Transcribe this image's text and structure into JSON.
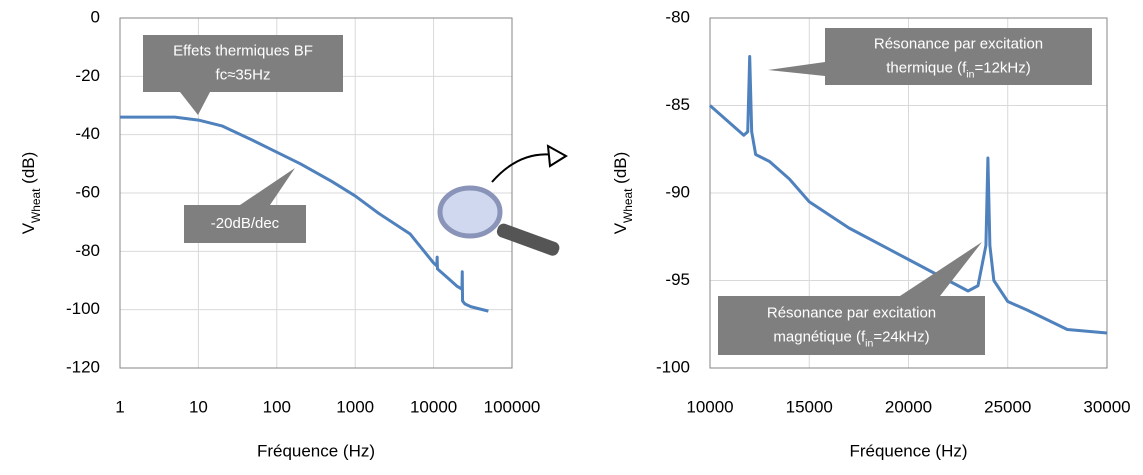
{
  "chart_data": [
    {
      "type": "line",
      "xscale": "log",
      "xlabel": "Fréquence (Hz)",
      "ylabel": [
        {
          "text": "V"
        },
        {
          "text": "Wheat",
          "sub": true
        },
        {
          "text": " (dB)"
        }
      ],
      "xlim": [
        1,
        100000
      ],
      "xticks": [
        1,
        10,
        100,
        1000,
        10000,
        100000
      ],
      "ylim": [
        -120,
        0
      ],
      "yticks": [
        -120,
        -100,
        -80,
        -60,
        -40,
        -20,
        0
      ],
      "grid": true,
      "series": [
        {
          "color": "#4f81bd",
          "x": [
            1,
            2,
            5,
            10,
            20,
            50,
            100,
            200,
            500,
            1000,
            2000,
            5000,
            10000,
            11000,
            11100,
            11200,
            15000,
            20000,
            23000,
            23200,
            23400,
            25000,
            30000,
            50000
          ],
          "values": [
            -34,
            -34,
            -34,
            -35,
            -37,
            -42,
            -46,
            -50,
            -56,
            -61,
            -67,
            -74,
            -84,
            -85,
            -82,
            -86,
            -89,
            -92,
            -93,
            -87,
            -97,
            -98,
            -99,
            -100.5
          ]
        }
      ],
      "annotations": [
        {
          "lines": [
            [
              {
                "text": "Effets thermiques BF"
              }
            ],
            [
              {
                "text": "fc≈35Hz"
              }
            ]
          ]
        },
        {
          "lines": [
            [
              {
                "text": "-20dB/dec"
              }
            ]
          ]
        }
      ]
    },
    {
      "type": "line",
      "xscale": "linear",
      "xlabel": "Fréquence (Hz)",
      "ylabel": [
        {
          "text": "V"
        },
        {
          "text": "Wheat",
          "sub": true
        },
        {
          "text": " (dB)"
        }
      ],
      "xlim": [
        10000,
        30000
      ],
      "xticks": [
        10000,
        15000,
        20000,
        25000,
        30000
      ],
      "ylim": [
        -100,
        -80
      ],
      "yticks": [
        -100,
        -95,
        -90,
        -85,
        -80
      ],
      "grid": true,
      "series": [
        {
          "color": "#4f81bd",
          "x": [
            10000,
            11000,
            11700,
            11900,
            12000,
            12100,
            12300,
            13000,
            14000,
            15000,
            17000,
            20000,
            23000,
            23500,
            23900,
            24000,
            24100,
            24300,
            25000,
            26000,
            28000,
            30000
          ],
          "values": [
            -85,
            -86,
            -86.7,
            -86.5,
            -82.2,
            -86.5,
            -87.8,
            -88.2,
            -89.2,
            -90.5,
            -92,
            -93.8,
            -95.6,
            -95.3,
            -93,
            -88,
            -93,
            -95,
            -96.2,
            -96.7,
            -97.8,
            -98
          ]
        }
      ],
      "annotations": [
        {
          "lines": [
            [
              {
                "text": "Résonance par excitation"
              }
            ],
            [
              {
                "text": "thermique (f"
              },
              {
                "text": "in",
                "sub": true
              },
              {
                "text": "=12kHz)"
              }
            ]
          ]
        },
        {
          "lines": [
            [
              {
                "text": "Résonance par excitation"
              }
            ],
            [
              {
                "text": "magnétique (f"
              },
              {
                "text": "in",
                "sub": true
              },
              {
                "text": "=24kHz)"
              }
            ]
          ]
        }
      ]
    }
  ]
}
